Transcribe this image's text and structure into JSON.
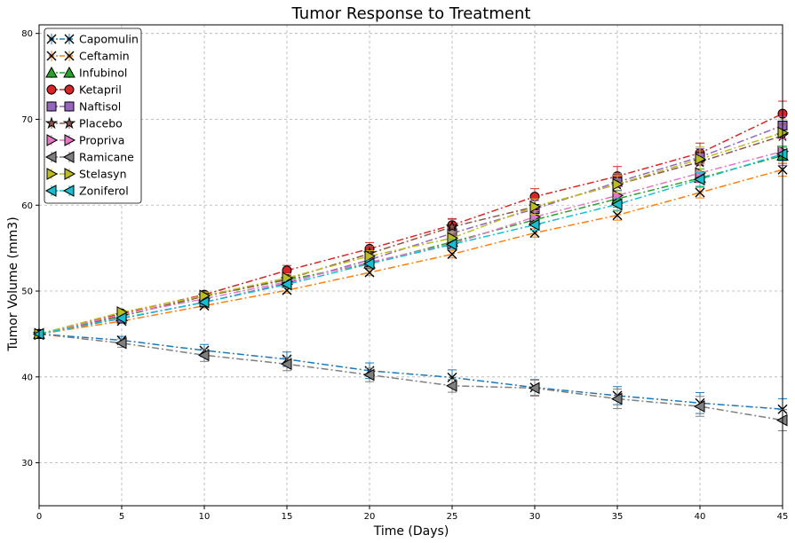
{
  "chart_data": {
    "type": "line",
    "title": "Tumor Response to Treatment",
    "xlabel": "Time (Days)",
    "ylabel": "Tumor Volume (mm3)",
    "xlim": [
      0,
      45
    ],
    "ylim": [
      25,
      81
    ],
    "xticks": [
      0,
      5,
      10,
      15,
      20,
      25,
      30,
      35,
      40,
      45
    ],
    "yticks": [
      30,
      40,
      50,
      60,
      70,
      80
    ],
    "grid": true,
    "legend_position": "top-left",
    "x": [
      0,
      5,
      10,
      15,
      20,
      25,
      30,
      35,
      40,
      45
    ],
    "series": [
      {
        "name": "Capomulin",
        "color": "#1f77b4",
        "marker": "x",
        "values": [
          45.0,
          44.27,
          43.08,
          42.06,
          40.72,
          39.94,
          38.77,
          37.82,
          36.96,
          36.24
        ],
        "errors": [
          0,
          0.45,
          0.7,
          0.84,
          0.91,
          0.88,
          0.93,
          1.05,
          1.22,
          1.22
        ]
      },
      {
        "name": "Ceftamin",
        "color": "#ff7f0e",
        "marker": "x",
        "values": [
          45.0,
          46.5,
          48.29,
          50.09,
          52.16,
          54.29,
          56.77,
          58.83,
          61.47,
          64.13
        ],
        "errors": [
          0,
          0.16,
          0.24,
          0.33,
          0.36,
          0.44,
          0.49,
          0.58,
          0.63,
          0.76
        ]
      },
      {
        "name": "Infubinol",
        "color": "#2ca02c",
        "marker": "^",
        "values": [
          45.0,
          47.06,
          49.4,
          51.3,
          53.2,
          55.72,
          58.3,
          60.74,
          63.16,
          65.76
        ],
        "errors": [
          0,
          0.24,
          0.28,
          0.36,
          0.48,
          0.55,
          0.63,
          0.98,
          1.06,
          1.14
        ]
      },
      {
        "name": "Ketapril",
        "color": "#d62728",
        "marker": "o",
        "values": [
          45.0,
          47.39,
          49.58,
          52.4,
          54.92,
          57.68,
          60.99,
          63.37,
          66.07,
          70.66
        ],
        "errors": [
          0,
          0.26,
          0.36,
          0.58,
          0.73,
          0.76,
          0.93,
          1.13,
          1.16,
          1.45
        ]
      },
      {
        "name": "Naftisol",
        "color": "#9467bd",
        "marker": "s",
        "values": [
          45.0,
          46.8,
          48.69,
          50.93,
          53.64,
          56.73,
          59.56,
          62.69,
          65.6,
          69.27
        ],
        "errors": [
          0,
          0.2,
          0.32,
          0.44,
          0.6,
          0.81,
          0.98,
          1.01,
          1.0,
          1.06
        ]
      },
      {
        "name": "Placebo",
        "color": "#8c564b",
        "marker": "*",
        "values": [
          45.0,
          47.13,
          49.42,
          51.36,
          54.36,
          57.48,
          59.81,
          62.42,
          65.05,
          68.08
        ],
        "errors": [
          0,
          0.22,
          0.4,
          0.61,
          0.84,
          0.88,
          0.93,
          1.13,
          1.31,
          1.35
        ]
      },
      {
        "name": "Propriva",
        "color": "#e377c2",
        "marker": ">",
        "values": [
          45.0,
          47.25,
          49.1,
          51.07,
          53.35,
          55.5,
          58.63,
          61.12,
          63.74,
          66.26
        ],
        "errors": [
          0,
          0.23,
          0.38,
          0.47,
          0.55,
          0.58,
          0.73,
          1.03,
          1.05,
          1.45
        ]
      },
      {
        "name": "Ramicane",
        "color": "#7f7f7f",
        "marker": "<",
        "values": [
          45.0,
          43.94,
          42.53,
          41.5,
          40.24,
          38.97,
          38.7,
          37.45,
          36.57,
          34.96
        ],
        "errors": [
          0,
          0.48,
          0.72,
          0.77,
          0.79,
          0.75,
          0.93,
          1.13,
          1.16,
          1.23
        ]
      },
      {
        "name": "Stelasyn",
        "color": "#bcbd22",
        "marker": ">",
        "values": [
          45.0,
          47.53,
          49.46,
          51.53,
          54.07,
          56.17,
          59.83,
          62.44,
          65.36,
          68.44
        ],
        "errors": [
          0,
          0.24,
          0.43,
          0.49,
          0.62,
          0.74,
          0.9,
          1.0,
          1.41,
          1.58
        ]
      },
      {
        "name": "Zoniferol",
        "color": "#17becf",
        "marker": "<",
        "values": [
          45.0,
          46.85,
          48.69,
          50.78,
          53.17,
          55.43,
          57.71,
          60.09,
          63.0,
          65.96
        ],
        "errors": [
          0,
          0.19,
          0.26,
          0.36,
          0.44,
          0.57,
          0.63,
          0.77,
          0.79,
          0.8
        ]
      }
    ]
  }
}
